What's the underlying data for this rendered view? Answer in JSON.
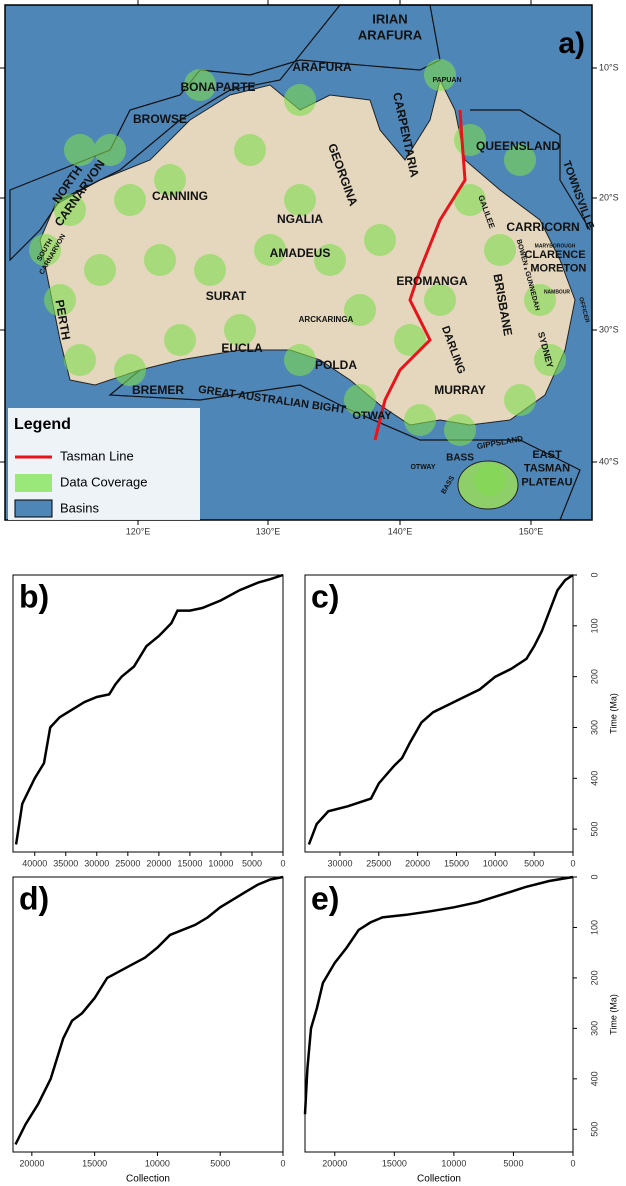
{
  "map": {
    "panel_label": "a)",
    "lon_labels": [
      "120°E",
      "130°E",
      "140°E",
      "150°E"
    ],
    "lat_labels": [
      "10°S",
      "20°S",
      "30°S",
      "40°S"
    ],
    "basins": [
      [
        "IRIAN",
        "ARAFURA"
      ],
      [
        "ARAFURA"
      ],
      [
        "BONAPARTE"
      ],
      [
        "PAPUAN"
      ],
      [
        "BROWSE"
      ],
      [
        "CARPENTARIA"
      ],
      [
        "QUEENSLAND"
      ],
      [
        "NORTH",
        "CARNARVON"
      ],
      [
        "CANNING"
      ],
      [
        "GEORGINA"
      ],
      [
        "NGALIA"
      ],
      [
        "TOWNSVILLE"
      ],
      [
        "CARRICORN"
      ],
      [
        "GALILEE"
      ],
      [
        "SOUTH",
        "CARNARVON"
      ],
      [
        "AMADEUS"
      ],
      [
        "MARYBOROUGH"
      ],
      [
        "BOWEN - GUNNEDAH"
      ],
      [
        "CLARENCE",
        "- MORETON"
      ],
      [
        "EROMANGA"
      ],
      [
        "NAMBOUR"
      ],
      [
        "OFFICER"
      ],
      [
        "SURAT"
      ],
      [
        "BRISBANE"
      ],
      [
        "ARCKARINGA"
      ],
      [
        "PERTH"
      ],
      [
        "DARLING"
      ],
      [
        "EUCLA"
      ],
      [
        "SYDNEY"
      ],
      [
        "POLDA"
      ],
      [
        "MURRAY"
      ],
      [
        "BREMER"
      ],
      [
        "GREAT AUSTRALIAN BIGHT"
      ],
      [
        "OTWAY"
      ],
      [
        "GIPPSLAND"
      ],
      [
        "BASS"
      ],
      [
        "EAST",
        "TASMAN",
        "PLATEAU"
      ],
      [
        "OTWAY"
      ],
      [
        "BASS"
      ]
    ],
    "legend": {
      "title": "Legend",
      "items": [
        "Tasman Line",
        "Data Coverage",
        "Basins"
      ]
    }
  },
  "chart_data": [
    {
      "type": "line",
      "panel_label": "b)",
      "color": "#000000",
      "x": [
        43000,
        42000,
        40000,
        38500,
        37500,
        36000,
        34000,
        32000,
        30000,
        28000,
        27000,
        26000,
        24000,
        22000,
        20000,
        18000,
        17000,
        15000,
        13000,
        10000,
        7000,
        4000,
        2000,
        0
      ],
      "values": [
        530,
        450,
        400,
        370,
        300,
        280,
        265,
        250,
        240,
        235,
        215,
        200,
        180,
        140,
        120,
        95,
        70,
        70,
        65,
        50,
        30,
        15,
        8,
        0
      ],
      "xlim": [
        43500,
        0
      ],
      "ylim": [
        545,
        0
      ],
      "xticks": [
        40000,
        35000,
        30000,
        25000,
        20000,
        15000,
        10000,
        5000,
        0
      ]
    },
    {
      "type": "line",
      "panel_label": "c)",
      "color": "#000000",
      "ylabel": "Time (Ma)",
      "x": [
        34000,
        33000,
        31500,
        29000,
        26000,
        25000,
        23000,
        22000,
        21000,
        19500,
        18000,
        16000,
        14000,
        12000,
        10000,
        8000,
        6000,
        5000,
        4000,
        3000,
        2000,
        1000,
        0
      ],
      "values": [
        530,
        490,
        465,
        455,
        440,
        410,
        375,
        360,
        330,
        290,
        270,
        255,
        240,
        225,
        200,
        185,
        165,
        140,
        110,
        70,
        30,
        10,
        0
      ],
      "xlim": [
        34500,
        0
      ],
      "ylim": [
        545,
        0
      ],
      "xticks": [
        30000,
        25000,
        20000,
        15000,
        10000,
        5000,
        0
      ],
      "yticks": [
        0,
        100,
        200,
        300,
        400,
        500
      ]
    },
    {
      "type": "line",
      "panel_label": "d)",
      "color": "#000000",
      "xlabel": "Collection",
      "x": [
        21300,
        20500,
        19500,
        18500,
        17500,
        16800,
        16000,
        15000,
        14000,
        12500,
        11000,
        10000,
        9000,
        7000,
        6000,
        5000,
        4000,
        3000,
        2000,
        1000,
        0
      ],
      "values": [
        530,
        490,
        450,
        400,
        320,
        285,
        270,
        240,
        200,
        180,
        160,
        140,
        115,
        95,
        80,
        60,
        45,
        30,
        15,
        5,
        0
      ],
      "xlim": [
        21500,
        0
      ],
      "ylim": [
        545,
        0
      ],
      "xticks": [
        20000,
        15000,
        10000,
        5000,
        0
      ]
    },
    {
      "type": "line",
      "panel_label": "e)",
      "color": "#000000",
      "xlabel": "Collection",
      "ylabel": "Time (Ma)",
      "x": [
        22500,
        22300,
        22000,
        21500,
        21000,
        20000,
        19000,
        18000,
        17000,
        16000,
        14000,
        12000,
        10000,
        8000,
        6000,
        4000,
        2000,
        0
      ],
      "values": [
        470,
        380,
        300,
        260,
        210,
        170,
        140,
        105,
        90,
        80,
        75,
        68,
        60,
        50,
        35,
        20,
        8,
        0
      ],
      "xlim": [
        22500,
        0
      ],
      "ylim": [
        545,
        0
      ],
      "xticks": [
        20000,
        15000,
        10000,
        5000,
        0
      ],
      "yticks": [
        0,
        100,
        200,
        300,
        400,
        500
      ]
    }
  ]
}
